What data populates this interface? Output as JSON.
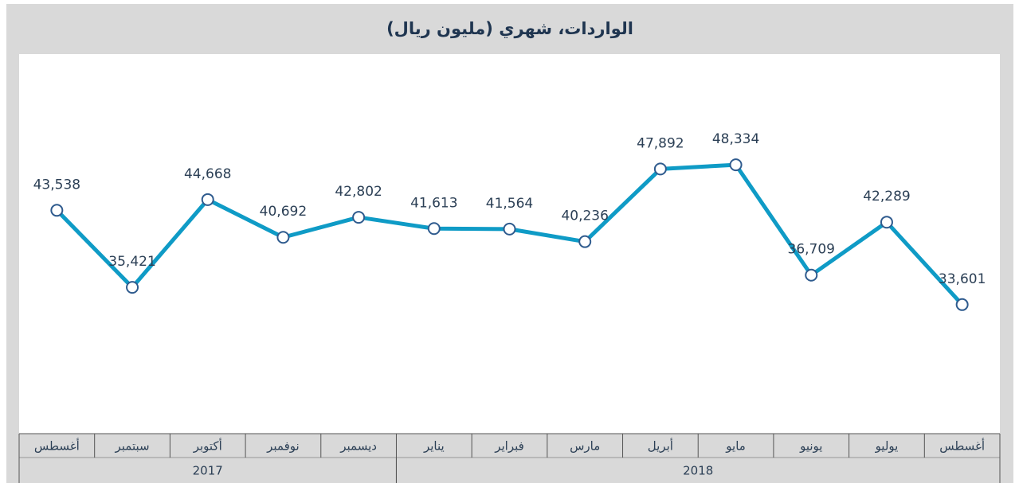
{
  "chart_data": {
    "type": "line",
    "title": "الواردات، شهري (مليون ريال)",
    "categories": [
      "أغسطس",
      "سبتمبر",
      "أكتوبر",
      "نوفمبر",
      "ديسمبر",
      "يناير",
      "فبراير",
      "مارس",
      "أبريل",
      "مايو",
      "يونيو",
      "يوليو",
      "أغسطس"
    ],
    "groups": [
      {
        "name": "2017",
        "size": 5
      },
      {
        "name": "2018",
        "size": 8
      }
    ],
    "series": [
      {
        "color": "#0f9bc6",
        "values": [
          43538,
          35421,
          44668,
          40692,
          42802,
          41613,
          41564,
          40236,
          47892,
          48334,
          36709,
          42289,
          33601
        ],
        "value_labels": [
          "43,538",
          "35,421",
          "44,668",
          "40,692",
          "42,802",
          "41,613",
          "41,564",
          "40,236",
          "47,892",
          "48,334",
          "36,709",
          "42,289",
          "33,601"
        ]
      }
    ],
    "ylim": [
      20000,
      60000
    ]
  }
}
